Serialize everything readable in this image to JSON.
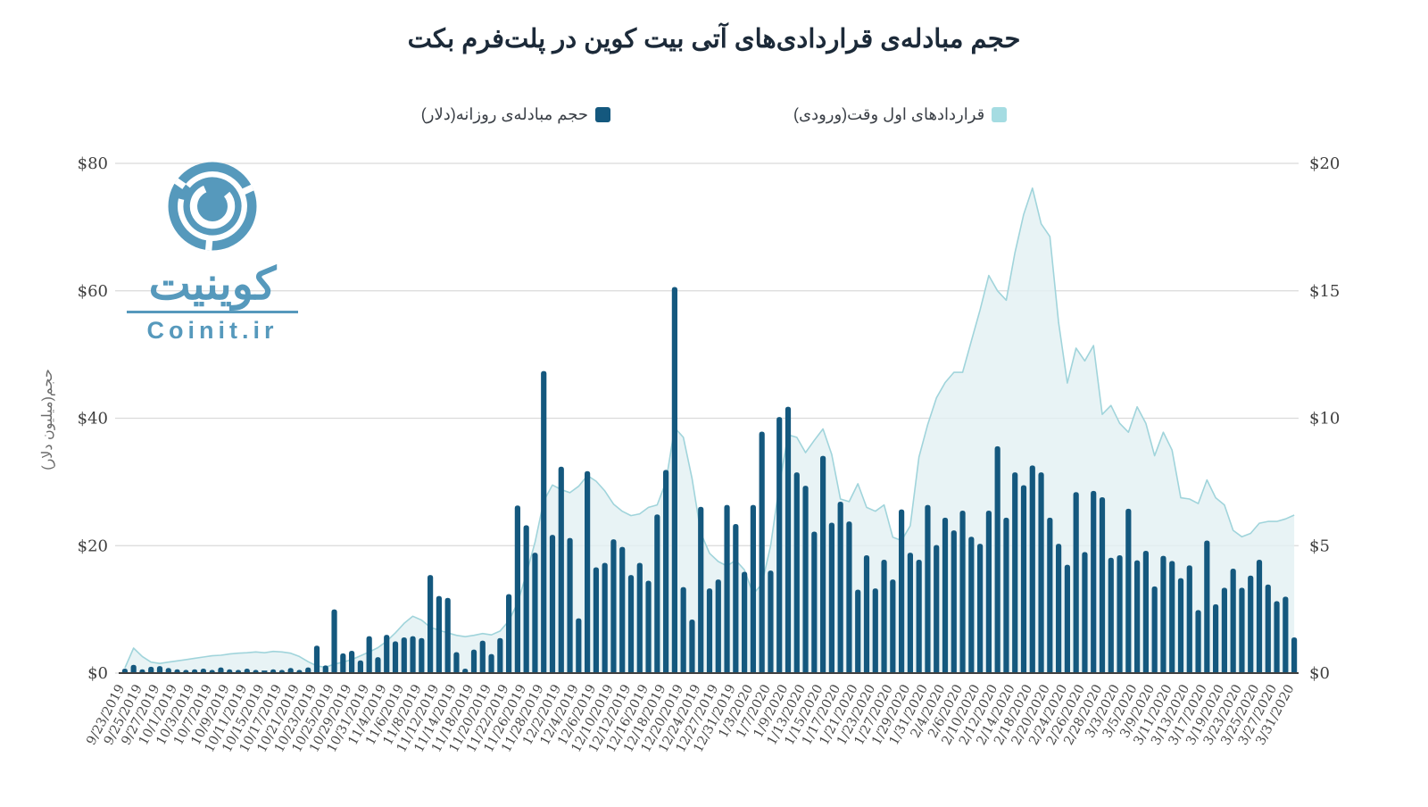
{
  "title": "حجم مبادله‌ی قراردادی‌های آتی بیت کوین در پلت‌فرم بکت",
  "legend": [
    {
      "label": "قراردادهای اول وقت(ورودی)",
      "swatch_color": "#a5dce2"
    },
    {
      "label": "حجم مبادله‌ی روزانه(دلار)",
      "swatch_color": "#14587e"
    }
  ],
  "watermark": {
    "wordmark_fa": "کوینیت",
    "site": "Coinit.ir",
    "color": "#4a92b8"
  },
  "axes": {
    "left": {
      "title": "حجم(میلیون دلار)",
      "tick_labels": [
        "$0",
        "$20",
        "$40",
        "$60",
        "$80"
      ],
      "tick_values": [
        0,
        20,
        40,
        60,
        80
      ],
      "max": 80
    },
    "right": {
      "tick_labels": [
        "$0",
        "$5",
        "$10",
        "$15",
        "$20"
      ],
      "tick_values": [
        0,
        5,
        10,
        15,
        20
      ],
      "max": 20
    }
  },
  "chart_data": {
    "type": "bar+area",
    "title": "حجم مبادله‌ی قراردادی‌های آتی بیت کوین در پلت‌فرم بکت",
    "grid": true,
    "left_ylim": [
      0,
      80
    ],
    "right_ylim": [
      0,
      20
    ],
    "ticks_every_n_bars": 2,
    "x_tick_labels": [
      "9/23/2019",
      "9/25/2019",
      "9/27/2019",
      "10/1/2019",
      "10/3/2019",
      "10/7/2019",
      "10/9/2019",
      "10/11/2019",
      "10/15/2019",
      "10/17/2019",
      "10/21/2019",
      "10/23/2019",
      "10/25/2019",
      "10/29/2019",
      "10/31/2019",
      "11/4/2019",
      "11/6/2019",
      "11/8/2019",
      "11/12/2019",
      "11/14/2019",
      "11/18/2019",
      "11/20/2019",
      "11/22/2019",
      "11/26/2019",
      "11/28/2019",
      "12/2/2019",
      "12/4/2019",
      "12/6/2019",
      "12/10/2019",
      "12/12/2019",
      "12/16/2019",
      "12/18/2019",
      "12/20/2019",
      "12/24/2019",
      "12/27/2019",
      "12/31/2019",
      "1/3/2020",
      "1/7/2020",
      "1/9/2020",
      "1/13/2020",
      "1/15/2020",
      "1/17/2020",
      "1/21/2020",
      "1/23/2020",
      "1/27/2020",
      "1/29/2020",
      "1/31/2020",
      "2/4/2020",
      "2/6/2020",
      "2/10/2020",
      "2/12/2020",
      "2/14/2020",
      "2/18/2020",
      "2/20/2020",
      "2/24/2020",
      "2/26/2020",
      "2/28/2020",
      "3/3/2020",
      "3/5/2020",
      "3/9/2020",
      "3/11/2020",
      "3/13/2020",
      "3/17/2020",
      "3/19/2020",
      "3/23/2020",
      "3/25/2020",
      "3/27/2020",
      "3/31/2020"
    ],
    "series": [
      {
        "name": "حجم مبادله‌ی روزانه(دلار)",
        "type": "bar",
        "axis": "left",
        "unit": "million USD",
        "color": "#14587e",
        "values": [
          0.7,
          1.3,
          0.6,
          1.0,
          1.1,
          0.8,
          0.6,
          0.5,
          0.6,
          0.7,
          0.5,
          0.9,
          0.6,
          0.5,
          0.7,
          0.5,
          0.4,
          0.6,
          0.5,
          0.8,
          0.5,
          0.9,
          4.3,
          1.2,
          10.0,
          3.1,
          3.5,
          2.0,
          5.8,
          2.5,
          6.0,
          5.0,
          5.6,
          5.8,
          5.5,
          15.4,
          12.1,
          11.8,
          3.3,
          0.7,
          3.7,
          5.1,
          3.0,
          5.5,
          12.4,
          26.3,
          23.2,
          18.9,
          47.4,
          21.7,
          32.4,
          21.2,
          8.6,
          31.7,
          16.6,
          17.3,
          21.0,
          19.8,
          15.4,
          17.3,
          14.5,
          24.9,
          31.9,
          60.6,
          13.5,
          8.4,
          26.1,
          13.3,
          14.7,
          26.4,
          23.4,
          15.9,
          26.4,
          37.9,
          16.1,
          40.2,
          41.8,
          31.5,
          29.4,
          22.2,
          34.1,
          23.6,
          26.9,
          23.8,
          13.1,
          18.5,
          13.3,
          17.8,
          14.7,
          25.7,
          18.9,
          17.8,
          26.4,
          20.1,
          24.4,
          22.4,
          25.5,
          21.4,
          20.3,
          25.5,
          35.6,
          24.4,
          31.5,
          29.5,
          32.6,
          31.5,
          24.4,
          20.3,
          17.0,
          28.4,
          19.0,
          28.6,
          27.6,
          18.1,
          18.5,
          25.8,
          17.7,
          19.2,
          13.6,
          18.4,
          17.6,
          14.9,
          16.9,
          9.9,
          20.8,
          10.8,
          13.4,
          16.4,
          13.4,
          15.3,
          17.8,
          13.9,
          11.3,
          12.0,
          5.6
        ]
      },
      {
        "name": "قراردادهای اول وقت(ورودی)",
        "type": "area",
        "axis": "right",
        "unit": "USD",
        "fill": "#e2f0f2",
        "stroke": "#a0d4db",
        "values": [
          0.2,
          0.98,
          0.65,
          0.43,
          0.38,
          0.43,
          0.48,
          0.53,
          0.58,
          0.63,
          0.68,
          0.7,
          0.75,
          0.78,
          0.8,
          0.83,
          0.8,
          0.85,
          0.83,
          0.78,
          0.65,
          0.45,
          0.28,
          0.23,
          0.35,
          0.43,
          0.53,
          0.68,
          0.83,
          1.0,
          1.25,
          1.58,
          1.95,
          2.23,
          2.08,
          1.8,
          1.68,
          1.58,
          1.48,
          1.43,
          1.48,
          1.55,
          1.5,
          1.65,
          2.05,
          2.75,
          3.88,
          5.13,
          6.75,
          7.38,
          7.2,
          7.08,
          7.33,
          7.75,
          7.53,
          7.15,
          6.63,
          6.35,
          6.18,
          6.25,
          6.5,
          6.6,
          7.5,
          9.63,
          9.25,
          7.63,
          5.5,
          4.7,
          4.38,
          4.2,
          4.43,
          4.05,
          3.1,
          3.5,
          5.0,
          7.38,
          9.35,
          9.25,
          8.65,
          9.13,
          9.58,
          8.58,
          6.83,
          6.73,
          7.43,
          6.5,
          6.35,
          6.6,
          5.33,
          5.2,
          5.78,
          8.48,
          9.75,
          10.8,
          11.4,
          11.8,
          11.8,
          13.03,
          14.25,
          15.6,
          15.0,
          14.63,
          16.5,
          18.0,
          19.03,
          17.63,
          17.13,
          13.75,
          11.38,
          12.75,
          12.25,
          12.85,
          10.15,
          10.5,
          9.8,
          9.45,
          10.45,
          9.8,
          8.53,
          9.45,
          8.75,
          6.88,
          6.83,
          6.65,
          7.58,
          6.88,
          6.6,
          5.6,
          5.35,
          5.48,
          5.88,
          5.95,
          5.95,
          6.05,
          6.2
        ]
      }
    ],
    "colors": {
      "bar": "#14587e",
      "area_fill": "#e2f0f2",
      "area_stroke": "#a0d4db",
      "grid": "#dadada",
      "axis_line": "#404040"
    }
  }
}
